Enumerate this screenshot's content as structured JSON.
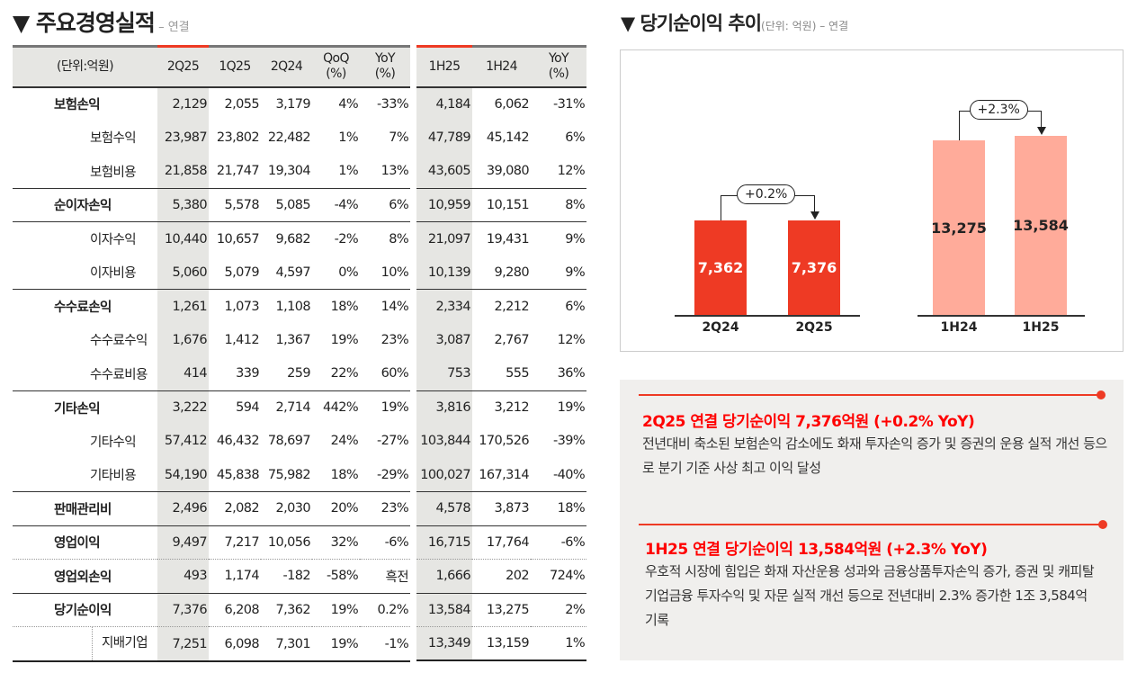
{
  "title": {
    "text": "▼ 주요경영실적",
    "sub": " – 연결"
  },
  "chart_title": {
    "text": "▼ 당기순이익 추이",
    "sub": "(단위: 억원) – 연결"
  },
  "table": {
    "headers_left": [
      "(단위:억원)",
      "2Q25",
      "1Q25",
      "2Q24",
      "QoQ\n(%)",
      "YoY\n(%)"
    ],
    "headers_right": [
      "1H25",
      "1H24",
      "YoY\n(%)"
    ],
    "rows": [
      {
        "label": "보험손익",
        "type": "main",
        "l": [
          "2,129",
          "2,055",
          "3,179",
          "4%",
          "-33%"
        ],
        "r": [
          "4,184",
          "6,062",
          "-31%"
        ],
        "line": ""
      },
      {
        "label": "보험수익",
        "type": "sub",
        "l": [
          "23,987",
          "23,802",
          "22,482",
          "1%",
          "7%"
        ],
        "r": [
          "47,789",
          "45,142",
          "6%"
        ],
        "line": ""
      },
      {
        "label": "보험비용",
        "type": "sub",
        "l": [
          "21,858",
          "21,747",
          "19,304",
          "1%",
          "13%"
        ],
        "r": [
          "43,605",
          "39,080",
          "12%"
        ],
        "line": "solid"
      },
      {
        "label": "순이자손익",
        "type": "main",
        "l": [
          "5,380",
          "5,578",
          "5,085",
          "-4%",
          "6%"
        ],
        "r": [
          "10,959",
          "10,151",
          "8%"
        ],
        "line": "solid"
      },
      {
        "label": "이자수익",
        "type": "sub",
        "l": [
          "10,440",
          "10,657",
          "9,682",
          "-2%",
          "8%"
        ],
        "r": [
          "21,097",
          "19,431",
          "9%"
        ],
        "line": ""
      },
      {
        "label": "이자비용",
        "type": "sub",
        "l": [
          "5,060",
          "5,079",
          "4,597",
          "0%",
          "10%"
        ],
        "r": [
          "10,139",
          "9,280",
          "9%"
        ],
        "line": "solid"
      },
      {
        "label": "수수료손익",
        "type": "main",
        "l": [
          "1,261",
          "1,073",
          "1,108",
          "18%",
          "14%"
        ],
        "r": [
          "2,334",
          "2,212",
          "6%"
        ],
        "line": ""
      },
      {
        "label": "수수료수익",
        "type": "sub",
        "l": [
          "1,676",
          "1,412",
          "1,367",
          "19%",
          "23%"
        ],
        "r": [
          "3,087",
          "2,767",
          "12%"
        ],
        "line": ""
      },
      {
        "label": "수수료비용",
        "type": "sub",
        "l": [
          "414",
          "339",
          "259",
          "22%",
          "60%"
        ],
        "r": [
          "753",
          "555",
          "36%"
        ],
        "line": "solid"
      },
      {
        "label": "기타손익",
        "type": "main",
        "l": [
          "3,222",
          "594",
          "2,714",
          "442%",
          "19%"
        ],
        "r": [
          "3,816",
          "3,212",
          "19%"
        ],
        "line": ""
      },
      {
        "label": "기타수익",
        "type": "sub",
        "l": [
          "57,412",
          "46,432",
          "78,697",
          "24%",
          "-27%"
        ],
        "r": [
          "103,844",
          "170,526",
          "-39%"
        ],
        "line": ""
      },
      {
        "label": "기타비용",
        "type": "sub",
        "l": [
          "54,190",
          "45,838",
          "75,982",
          "18%",
          "-29%"
        ],
        "r": [
          "100,027",
          "167,314",
          "-40%"
        ],
        "line": "solid"
      },
      {
        "label": "판매관리비",
        "type": "main",
        "l": [
          "2,496",
          "2,082",
          "2,030",
          "20%",
          "23%"
        ],
        "r": [
          "4,578",
          "3,873",
          "18%"
        ],
        "line": "solid"
      },
      {
        "label": "영업이익",
        "type": "main",
        "l": [
          "9,497",
          "7,217",
          "10,056",
          "32%",
          "-6%"
        ],
        "r": [
          "16,715",
          "17,764",
          "-6%"
        ],
        "line": "dot"
      },
      {
        "label": "영업외손익",
        "type": "main",
        "l": [
          "493",
          "1,174",
          "-182",
          "-58%",
          "흑전"
        ],
        "r": [
          "1,666",
          "202",
          "724%"
        ],
        "line": "solid"
      },
      {
        "label": "당기순이익",
        "type": "main",
        "l": [
          "7,376",
          "6,208",
          "7,362",
          "19%",
          "0.2%"
        ],
        "r": [
          "13,584",
          "13,275",
          "2%"
        ],
        "line": "dot"
      },
      {
        "label": "지배기업",
        "type": "sub2",
        "l": [
          "7,251",
          "6,098",
          "7,301",
          "19%",
          "-1%"
        ],
        "r": [
          "13,349",
          "13,159",
          "1%"
        ],
        "line": "last"
      }
    ]
  },
  "chart_data": {
    "type": "bar",
    "groups": [
      {
        "categories": [
          "2Q24",
          "2Q25"
        ],
        "values": [
          7362,
          7376
        ],
        "labels": [
          "7,362",
          "7,376"
        ],
        "change": "+0.2%",
        "color": "#ee3a24",
        "text_color": "#ffffff"
      },
      {
        "categories": [
          "1H24",
          "1H25"
        ],
        "values": [
          13275,
          13584
        ],
        "labels": [
          "13,275",
          "13,584"
        ],
        "change": "+2.3%",
        "color": "#ffab9a",
        "text_color": "#222222"
      }
    ]
  },
  "notes": [
    {
      "heading": "2Q25 연결 당기순이익 7,376억원 (+0.2% YoY)",
      "body": "전년대비 축소된 보험손익 감소에도 화재 투자손익 증가 및 증권의 운용 실적 개선 등으로 분기 기준 사상 최고 이익 달성"
    },
    {
      "heading": "1H25 연결 당기순이익 13,584억원 (+2.3% YoY)",
      "body": "우호적 시장에 힘입은 화재 자산운용 성과와 금융상품투자손익 증가, 증권 및 캐피탈 기업금융 투자수익 및 자문 실적 개선 등으로 전년대비 2.3% 증가한 1조 3,584억 기록"
    }
  ],
  "colors": {
    "accent": "#ee3a24",
    "highlight": "#e6e6e3",
    "panel": "#f0efed"
  }
}
